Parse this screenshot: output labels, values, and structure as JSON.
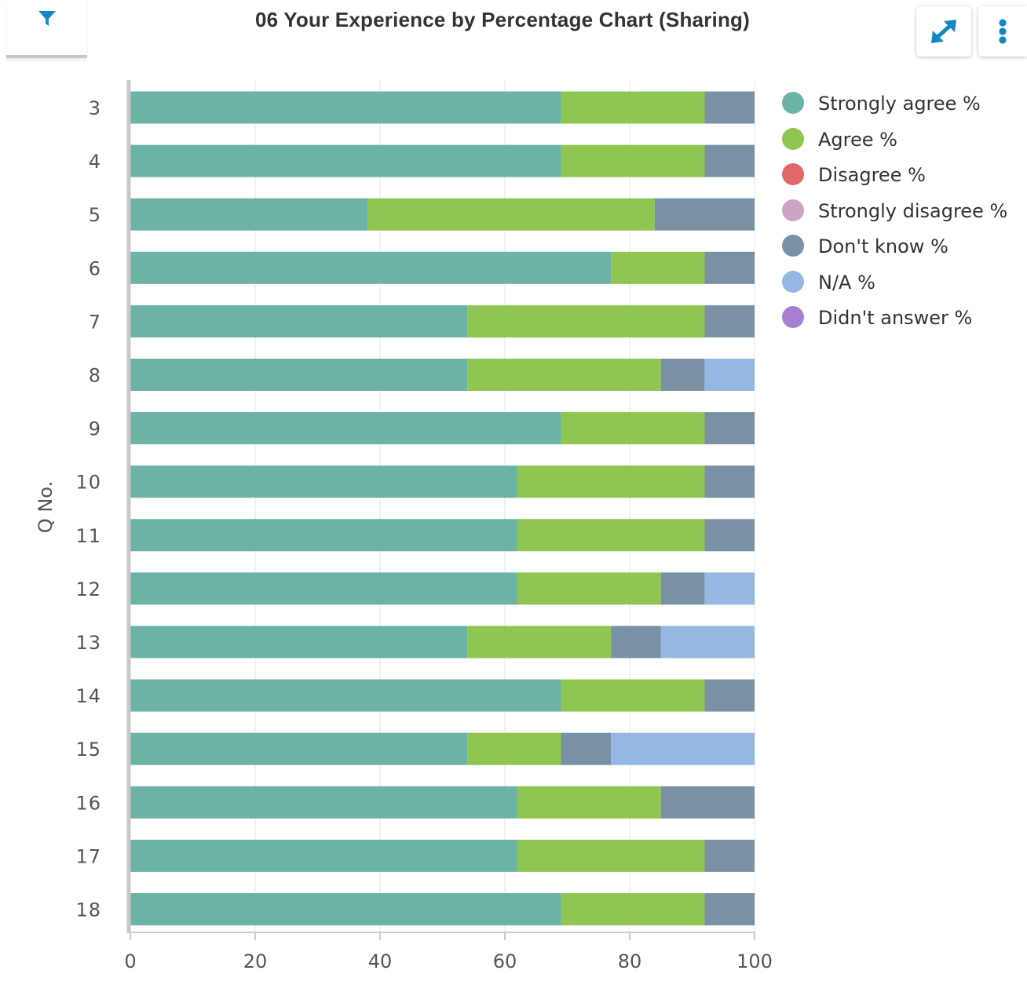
{
  "header": {
    "title": "06 Your Experience by Percentage Chart (Sharing)",
    "icons": {
      "filter": "filter-icon",
      "expand": "expand-icon",
      "menu": "more-vertical-icon"
    },
    "accent_color": "#1188c4"
  },
  "chart_data": {
    "type": "bar",
    "orientation": "horizontal",
    "stacked": true,
    "ylabel": "Q No.",
    "xlabel": "",
    "xlim": [
      0,
      100
    ],
    "xticks": [
      0,
      20,
      40,
      60,
      80,
      100
    ],
    "grid": true,
    "legend_position": "right",
    "categories": [
      "3",
      "4",
      "5",
      "6",
      "7",
      "8",
      "9",
      "10",
      "11",
      "12",
      "13",
      "14",
      "15",
      "16",
      "17",
      "18"
    ],
    "series": [
      {
        "name": "Strongly agree %",
        "color": "#6db3a5",
        "values": [
          69,
          69,
          38,
          77,
          54,
          54,
          69,
          62,
          62,
          62,
          54,
          69,
          54,
          62,
          62,
          69
        ]
      },
      {
        "name": "Agree %",
        "color": "#8fc551",
        "values": [
          23,
          23,
          46,
          15,
          38,
          31,
          23,
          30,
          30,
          23,
          23,
          23,
          15,
          23,
          30,
          23
        ]
      },
      {
        "name": "Disagree %",
        "color": "#e26767",
        "values": [
          0,
          0,
          0,
          0,
          0,
          0,
          0,
          0,
          0,
          0,
          0,
          0,
          0,
          0,
          0,
          0
        ]
      },
      {
        "name": "Strongly disagree %",
        "color": "#cda4c3",
        "values": [
          0,
          0,
          0,
          0,
          0,
          0,
          0,
          0,
          0,
          0,
          0,
          0,
          0,
          0,
          0,
          0
        ]
      },
      {
        "name": "Don't know %",
        "color": "#7991a4",
        "values": [
          8,
          8,
          16,
          8,
          8,
          7,
          8,
          8,
          8,
          7,
          8,
          8,
          8,
          15,
          8,
          8
        ]
      },
      {
        "name": "N/A %",
        "color": "#94b8e1",
        "values": [
          0,
          0,
          0,
          0,
          0,
          8,
          0,
          0,
          0,
          8,
          15,
          0,
          23,
          0,
          0,
          0
        ]
      },
      {
        "name": "Didn't answer %",
        "color": "#a780d3",
        "values": [
          0,
          0,
          0,
          0,
          0,
          0,
          0,
          0,
          0,
          0,
          0,
          0,
          0,
          0,
          0,
          0
        ]
      }
    ]
  }
}
